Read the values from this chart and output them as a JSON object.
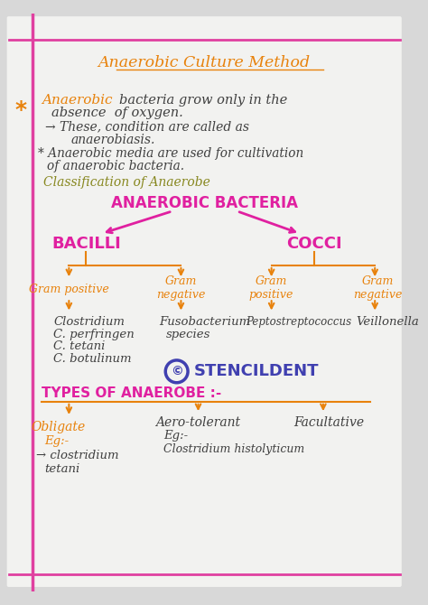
{
  "bg_color": "#d8d8d8",
  "page_bg": "#f2f2f0",
  "title": "Anaerobic Culture Method",
  "orange": "#E8820C",
  "magenta": "#E020A0",
  "purple": "#4040B0",
  "olive": "#888820",
  "dark_text": "#404040",
  "left_border_color": "#E040A0",
  "top_border_color": "#E040A0",
  "stencil_text": "STENCILDENT",
  "types_label": "TYPES OF ANAEROBE :-",
  "classif_label": "Classification of Anaerobe",
  "anaerobic_bacteria_label": "ANAEROBIC BACTERIA",
  "bacilli_label": "BACILLI",
  "cocci_label": "COCCI"
}
